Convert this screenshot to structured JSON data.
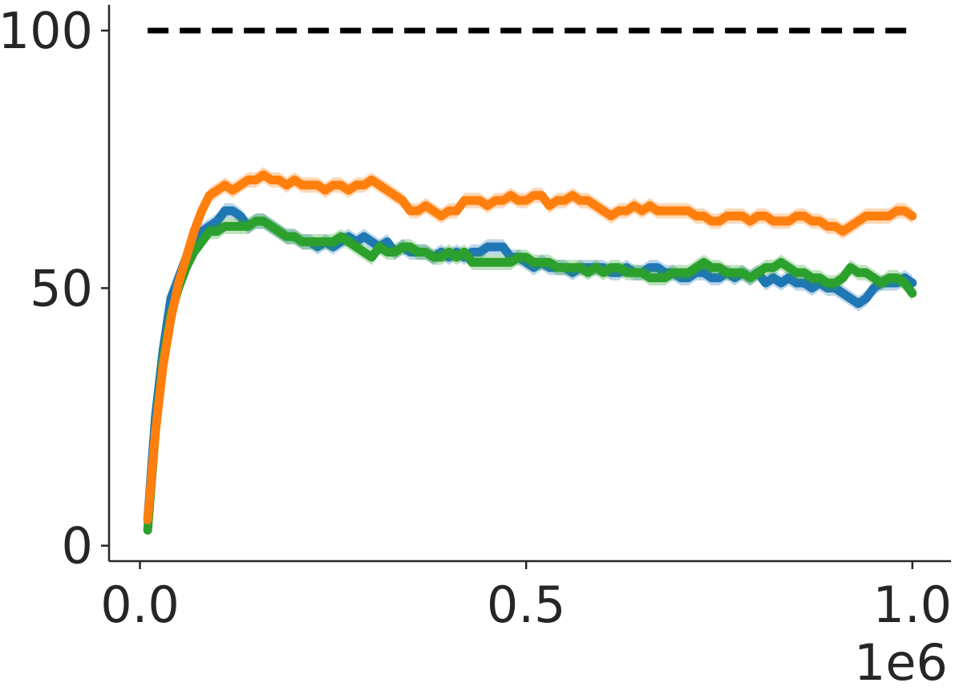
{
  "chart_data": {
    "type": "line",
    "title": "",
    "xlabel": "",
    "ylabel": "",
    "x_offset_label": "1e6",
    "xlim": [
      -0.04,
      1.05
    ],
    "ylim": [
      -3,
      105
    ],
    "x_ticks": [
      {
        "value": 0.0,
        "label": "0.0"
      },
      {
        "value": 0.5,
        "label": "0.5"
      },
      {
        "value": 1.0,
        "label": "1.0"
      }
    ],
    "y_ticks": [
      {
        "value": 0,
        "label": "0"
      },
      {
        "value": 50,
        "label": "50"
      },
      {
        "value": 100,
        "label": "100"
      }
    ],
    "grid": false,
    "reference_line": {
      "y": 100,
      "style": "dashed",
      "color": "#000000",
      "x_range": [
        0.01,
        1.0
      ]
    },
    "series": [
      {
        "color": "#1f77b4",
        "band": 1.5,
        "points": [
          [
            0.01,
            5
          ],
          [
            0.02,
            25
          ],
          [
            0.03,
            38
          ],
          [
            0.04,
            48
          ],
          [
            0.05,
            52
          ],
          [
            0.06,
            56
          ],
          [
            0.07,
            59
          ],
          [
            0.08,
            61
          ],
          [
            0.09,
            62
          ],
          [
            0.1,
            63
          ],
          [
            0.11,
            65
          ],
          [
            0.12,
            65
          ],
          [
            0.13,
            64
          ],
          [
            0.14,
            62
          ],
          [
            0.15,
            63
          ],
          [
            0.16,
            63
          ],
          [
            0.17,
            62
          ],
          [
            0.18,
            61
          ],
          [
            0.19,
            60
          ],
          [
            0.2,
            60
          ],
          [
            0.21,
            59
          ],
          [
            0.22,
            59
          ],
          [
            0.23,
            58
          ],
          [
            0.24,
            59
          ],
          [
            0.25,
            58
          ],
          [
            0.26,
            59
          ],
          [
            0.27,
            60
          ],
          [
            0.28,
            59
          ],
          [
            0.29,
            60
          ],
          [
            0.3,
            59
          ],
          [
            0.31,
            58
          ],
          [
            0.32,
            59
          ],
          [
            0.33,
            57
          ],
          [
            0.34,
            58
          ],
          [
            0.35,
            57
          ],
          [
            0.36,
            57
          ],
          [
            0.37,
            57
          ],
          [
            0.38,
            56
          ],
          [
            0.39,
            57
          ],
          [
            0.4,
            56
          ],
          [
            0.41,
            57
          ],
          [
            0.42,
            56
          ],
          [
            0.43,
            57
          ],
          [
            0.44,
            57
          ],
          [
            0.45,
            58
          ],
          [
            0.46,
            58
          ],
          [
            0.47,
            58
          ],
          [
            0.48,
            56
          ],
          [
            0.49,
            56
          ],
          [
            0.5,
            55
          ],
          [
            0.51,
            54
          ],
          [
            0.52,
            55
          ],
          [
            0.53,
            54
          ],
          [
            0.54,
            54
          ],
          [
            0.55,
            54
          ],
          [
            0.56,
            53
          ],
          [
            0.57,
            54
          ],
          [
            0.58,
            54
          ],
          [
            0.59,
            54
          ],
          [
            0.6,
            54
          ],
          [
            0.61,
            53
          ],
          [
            0.62,
            53
          ],
          [
            0.63,
            54
          ],
          [
            0.64,
            53
          ],
          [
            0.65,
            53
          ],
          [
            0.66,
            54
          ],
          [
            0.67,
            54
          ],
          [
            0.68,
            53
          ],
          [
            0.69,
            53
          ],
          [
            0.7,
            52
          ],
          [
            0.71,
            52
          ],
          [
            0.72,
            53
          ],
          [
            0.73,
            53
          ],
          [
            0.74,
            52
          ],
          [
            0.75,
            52
          ],
          [
            0.76,
            53
          ],
          [
            0.77,
            52
          ],
          [
            0.78,
            53
          ],
          [
            0.79,
            52
          ],
          [
            0.8,
            53
          ],
          [
            0.81,
            51
          ],
          [
            0.82,
            52
          ],
          [
            0.83,
            51
          ],
          [
            0.84,
            52
          ],
          [
            0.85,
            51
          ],
          [
            0.86,
            51
          ],
          [
            0.87,
            50
          ],
          [
            0.88,
            51
          ],
          [
            0.89,
            50
          ],
          [
            0.9,
            50
          ],
          [
            0.91,
            49
          ],
          [
            0.92,
            48
          ],
          [
            0.93,
            47
          ],
          [
            0.94,
            48
          ],
          [
            0.95,
            50
          ],
          [
            0.96,
            51
          ],
          [
            0.97,
            51
          ],
          [
            0.98,
            51
          ],
          [
            0.99,
            52
          ],
          [
            1.0,
            51
          ]
        ]
      },
      {
        "color": "#2ca02c",
        "band": 1.5,
        "points": [
          [
            0.01,
            3
          ],
          [
            0.02,
            22
          ],
          [
            0.03,
            36
          ],
          [
            0.04,
            45
          ],
          [
            0.05,
            50
          ],
          [
            0.06,
            54
          ],
          [
            0.07,
            57
          ],
          [
            0.08,
            59
          ],
          [
            0.09,
            61
          ],
          [
            0.1,
            61
          ],
          [
            0.11,
            62
          ],
          [
            0.12,
            62
          ],
          [
            0.13,
            62
          ],
          [
            0.14,
            62
          ],
          [
            0.15,
            63
          ],
          [
            0.16,
            63
          ],
          [
            0.17,
            62
          ],
          [
            0.18,
            61
          ],
          [
            0.19,
            60
          ],
          [
            0.2,
            60
          ],
          [
            0.21,
            59
          ],
          [
            0.22,
            59
          ],
          [
            0.23,
            59
          ],
          [
            0.24,
            59
          ],
          [
            0.25,
            59
          ],
          [
            0.26,
            60
          ],
          [
            0.27,
            59
          ],
          [
            0.28,
            58
          ],
          [
            0.29,
            57
          ],
          [
            0.3,
            56
          ],
          [
            0.31,
            58
          ],
          [
            0.32,
            57
          ],
          [
            0.33,
            57
          ],
          [
            0.34,
            58
          ],
          [
            0.35,
            58
          ],
          [
            0.36,
            57
          ],
          [
            0.37,
            57
          ],
          [
            0.38,
            56
          ],
          [
            0.39,
            56
          ],
          [
            0.4,
            57
          ],
          [
            0.41,
            56
          ],
          [
            0.42,
            57
          ],
          [
            0.43,
            55
          ],
          [
            0.44,
            55
          ],
          [
            0.45,
            55
          ],
          [
            0.46,
            55
          ],
          [
            0.47,
            55
          ],
          [
            0.48,
            55
          ],
          [
            0.49,
            56
          ],
          [
            0.5,
            56
          ],
          [
            0.51,
            55
          ],
          [
            0.52,
            55
          ],
          [
            0.53,
            55
          ],
          [
            0.54,
            54
          ],
          [
            0.55,
            54
          ],
          [
            0.56,
            54
          ],
          [
            0.57,
            54
          ],
          [
            0.58,
            53
          ],
          [
            0.59,
            54
          ],
          [
            0.6,
            53
          ],
          [
            0.61,
            54
          ],
          [
            0.62,
            54
          ],
          [
            0.63,
            53
          ],
          [
            0.64,
            53
          ],
          [
            0.65,
            53
          ],
          [
            0.66,
            52
          ],
          [
            0.67,
            52
          ],
          [
            0.68,
            52
          ],
          [
            0.69,
            53
          ],
          [
            0.7,
            53
          ],
          [
            0.71,
            53
          ],
          [
            0.72,
            54
          ],
          [
            0.73,
            55
          ],
          [
            0.74,
            54
          ],
          [
            0.75,
            54
          ],
          [
            0.76,
            53
          ],
          [
            0.77,
            53
          ],
          [
            0.78,
            53
          ],
          [
            0.79,
            52
          ],
          [
            0.8,
            53
          ],
          [
            0.81,
            54
          ],
          [
            0.82,
            54
          ],
          [
            0.83,
            55
          ],
          [
            0.84,
            54
          ],
          [
            0.85,
            53
          ],
          [
            0.86,
            53
          ],
          [
            0.87,
            52
          ],
          [
            0.88,
            52
          ],
          [
            0.89,
            51
          ],
          [
            0.9,
            51
          ],
          [
            0.91,
            52
          ],
          [
            0.92,
            54
          ],
          [
            0.93,
            53
          ],
          [
            0.94,
            53
          ],
          [
            0.95,
            52
          ],
          [
            0.96,
            51
          ],
          [
            0.97,
            52
          ],
          [
            0.98,
            52
          ],
          [
            0.99,
            51
          ],
          [
            1.0,
            49
          ]
        ]
      },
      {
        "color": "#ff7f0e",
        "band": 1.5,
        "points": [
          [
            0.01,
            5
          ],
          [
            0.02,
            22
          ],
          [
            0.03,
            35
          ],
          [
            0.04,
            44
          ],
          [
            0.05,
            51
          ],
          [
            0.06,
            56
          ],
          [
            0.07,
            61
          ],
          [
            0.08,
            65
          ],
          [
            0.09,
            68
          ],
          [
            0.1,
            69
          ],
          [
            0.11,
            70
          ],
          [
            0.12,
            69
          ],
          [
            0.13,
            70
          ],
          [
            0.14,
            71
          ],
          [
            0.15,
            71
          ],
          [
            0.16,
            72
          ],
          [
            0.17,
            71
          ],
          [
            0.18,
            71
          ],
          [
            0.19,
            70
          ],
          [
            0.2,
            71
          ],
          [
            0.21,
            70
          ],
          [
            0.22,
            70
          ],
          [
            0.23,
            70
          ],
          [
            0.24,
            69
          ],
          [
            0.25,
            70
          ],
          [
            0.26,
            70
          ],
          [
            0.27,
            69
          ],
          [
            0.28,
            70
          ],
          [
            0.29,
            70
          ],
          [
            0.3,
            71
          ],
          [
            0.31,
            70
          ],
          [
            0.32,
            69
          ],
          [
            0.33,
            68
          ],
          [
            0.34,
            67
          ],
          [
            0.35,
            65
          ],
          [
            0.36,
            65
          ],
          [
            0.37,
            66
          ],
          [
            0.38,
            65
          ],
          [
            0.39,
            64
          ],
          [
            0.4,
            65
          ],
          [
            0.41,
            65
          ],
          [
            0.42,
            67
          ],
          [
            0.43,
            67
          ],
          [
            0.44,
            67
          ],
          [
            0.45,
            66
          ],
          [
            0.46,
            67
          ],
          [
            0.47,
            67
          ],
          [
            0.48,
            68
          ],
          [
            0.49,
            67
          ],
          [
            0.5,
            67
          ],
          [
            0.51,
            68
          ],
          [
            0.52,
            68
          ],
          [
            0.53,
            66
          ],
          [
            0.54,
            67
          ],
          [
            0.55,
            67
          ],
          [
            0.56,
            68
          ],
          [
            0.57,
            67
          ],
          [
            0.58,
            67
          ],
          [
            0.59,
            66
          ],
          [
            0.6,
            65
          ],
          [
            0.61,
            64
          ],
          [
            0.62,
            65
          ],
          [
            0.63,
            65
          ],
          [
            0.64,
            66
          ],
          [
            0.65,
            65
          ],
          [
            0.66,
            66
          ],
          [
            0.67,
            65
          ],
          [
            0.68,
            65
          ],
          [
            0.69,
            65
          ],
          [
            0.7,
            65
          ],
          [
            0.71,
            65
          ],
          [
            0.72,
            64
          ],
          [
            0.73,
            64
          ],
          [
            0.74,
            63
          ],
          [
            0.75,
            63
          ],
          [
            0.76,
            64
          ],
          [
            0.77,
            64
          ],
          [
            0.78,
            64
          ],
          [
            0.79,
            63
          ],
          [
            0.8,
            64
          ],
          [
            0.81,
            64
          ],
          [
            0.82,
            63
          ],
          [
            0.83,
            63
          ],
          [
            0.84,
            63
          ],
          [
            0.85,
            64
          ],
          [
            0.86,
            64
          ],
          [
            0.87,
            63
          ],
          [
            0.88,
            63
          ],
          [
            0.89,
            62
          ],
          [
            0.9,
            62
          ],
          [
            0.91,
            61
          ],
          [
            0.92,
            62
          ],
          [
            0.93,
            63
          ],
          [
            0.94,
            64
          ],
          [
            0.95,
            64
          ],
          [
            0.96,
            64
          ],
          [
            0.97,
            64
          ],
          [
            0.98,
            65
          ],
          [
            0.99,
            65
          ],
          [
            1.0,
            64
          ]
        ]
      }
    ]
  }
}
